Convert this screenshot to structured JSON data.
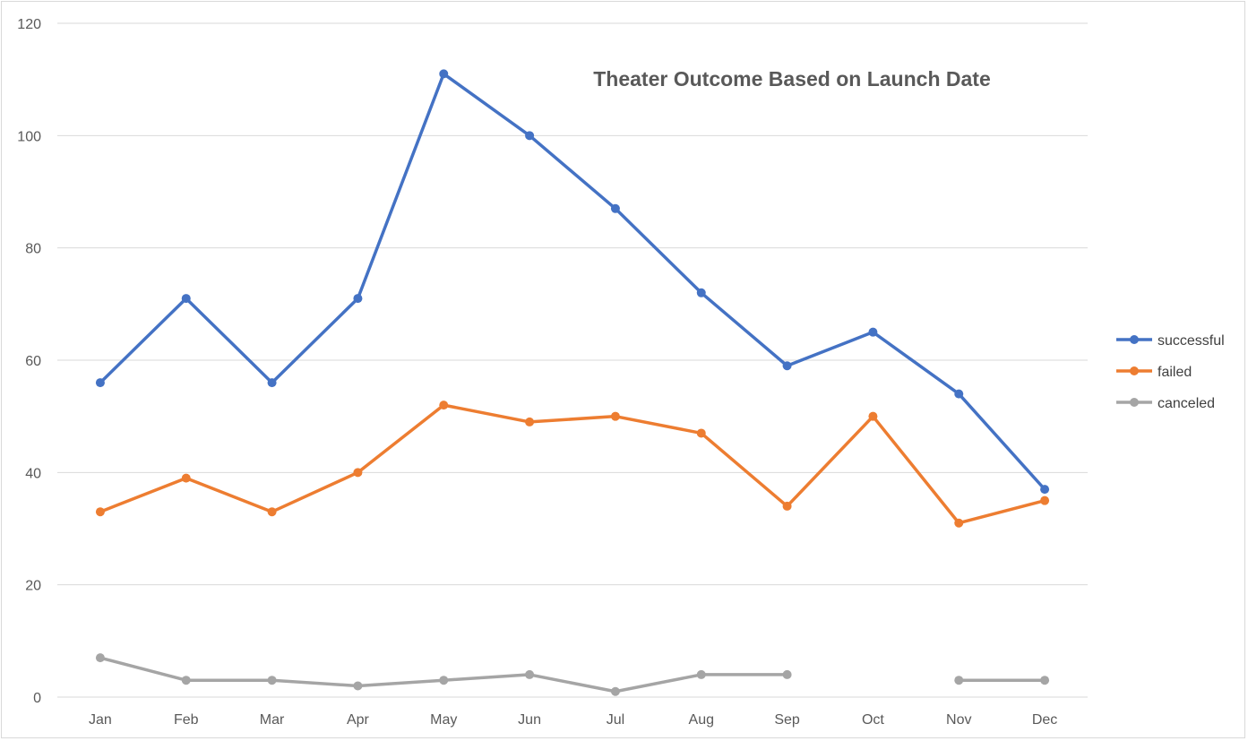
{
  "chart_data": {
    "type": "line",
    "title": "Theater Outcome Based on Launch Date",
    "xlabel": "",
    "ylabel": "",
    "categories": [
      "Jan",
      "Feb",
      "Mar",
      "Apr",
      "May",
      "Jun",
      "Jul",
      "Aug",
      "Sep",
      "Oct",
      "Nov",
      "Dec"
    ],
    "ylim": [
      0,
      120
    ],
    "yticks": [
      0,
      20,
      40,
      60,
      80,
      100,
      120
    ],
    "grid": true,
    "legend_position": "right",
    "series": [
      {
        "name": "successful",
        "color": "#4472c4",
        "values": [
          56,
          71,
          56,
          71,
          111,
          100,
          87,
          72,
          59,
          65,
          54,
          37
        ]
      },
      {
        "name": "failed",
        "color": "#ed7d31",
        "values": [
          33,
          39,
          33,
          40,
          52,
          49,
          50,
          47,
          34,
          50,
          31,
          35
        ]
      },
      {
        "name": "canceled",
        "color": "#a5a5a5",
        "values": [
          7,
          3,
          3,
          2,
          3,
          4,
          1,
          4,
          4,
          null,
          3,
          3
        ]
      }
    ]
  }
}
